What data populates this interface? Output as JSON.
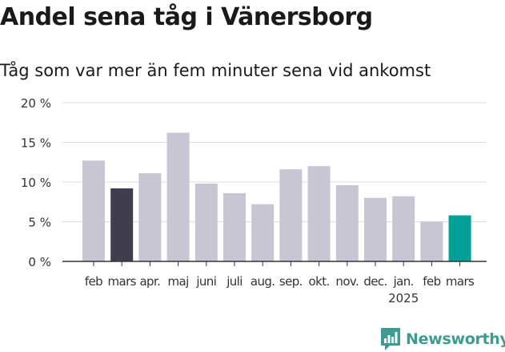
{
  "title": "Andel sena tåg i Vänersborg",
  "subtitle": "Tåg som var mer än fem minuter sena vid ankomst",
  "brand": {
    "name": "Newsworthy",
    "color": "#3c9c92",
    "icon": "chart-bubble-icon"
  },
  "colors": {
    "bar": "#c8c6d2",
    "highlight_prev": "#403e4c",
    "highlight_current": "#00a096",
    "grid": "#dddddd",
    "axis": "#333333"
  },
  "chart_data": {
    "type": "bar",
    "categories": [
      "feb",
      "mars",
      "apr.",
      "maj",
      "juni",
      "juli",
      "aug.",
      "sep.",
      "okt.",
      "nov.",
      "dec.",
      "jan.",
      "feb",
      "mars"
    ],
    "year_labels": [
      {
        "index": 11,
        "label": "2025"
      }
    ],
    "values": [
      12.7,
      9.2,
      11.1,
      16.2,
      9.8,
      8.6,
      7.2,
      11.6,
      12.0,
      9.6,
      8.0,
      8.2,
      5.0,
      5.8
    ],
    "highlight": [
      {
        "index": 1,
        "color_key": "highlight_prev"
      },
      {
        "index": 13,
        "color_key": "highlight_current"
      }
    ],
    "y_ticks": [
      "0 %",
      "5 %",
      "10 %",
      "15 %",
      "20 %"
    ],
    "ylim": [
      0,
      20
    ],
    "grid": true,
    "xlabel": "",
    "ylabel": ""
  }
}
